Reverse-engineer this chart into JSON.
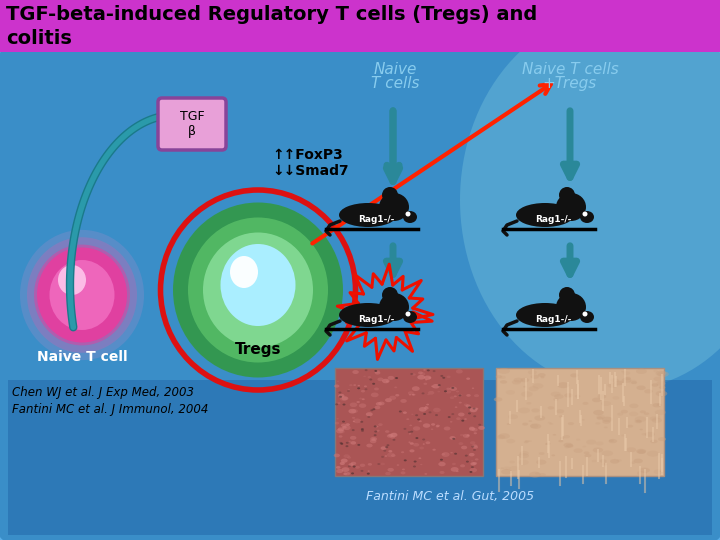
{
  "title_line1": "TGF-beta-induced Regulatory T cells (Tregs) and",
  "title_line2": "colitis",
  "title_bg": "#cc33cc",
  "title_text_color": "black",
  "bg_outer": "#1a5fa8",
  "bg_inner": "#3a8fc8",
  "bg_panel": "#4aaad8",
  "bg_right_panel": "#6bbce0",
  "subtitle_color": "#88ccee",
  "naive_cell_label": "Naive T cell",
  "tregs_label": "Tregs",
  "tgf_label": "TGF\nβ",
  "foxp3_label": "↑↑FoxP3\n↓↓Smad7",
  "naive_tcells_col1": "Naive\nT cells",
  "naive_tcells_col2": "Naive T cells\n+Tregs",
  "ref1": "Chen WJ et al. J Exp Med, 2003",
  "ref2": "Fantini MC et al. J Immunol, 2004",
  "ref3": "Fantini MC et al. Gut, 2005",
  "naive_cell_color_outer": "#e040a0",
  "naive_cell_color_inner": "#ff80c0",
  "naive_cell_color_bright": "#ffccdd",
  "tregs_red": "#dd1111",
  "tregs_green_outer": "#44aa55",
  "tregs_green_inner": "#88dd99",
  "tregs_cyan": "#99eeff",
  "tregs_white": "#ddfbff",
  "tgf_box_bg": "#e8a0d8",
  "tgf_box_border": "#884499",
  "arrow_teal": "#1a7a8a",
  "arrow_teal_fill": "#2a9aaa",
  "red_arrow_color": "#ff2200",
  "burst_color": "#ee1100",
  "hist1_color": "#c07878",
  "hist2_color": "#ddc8a8"
}
